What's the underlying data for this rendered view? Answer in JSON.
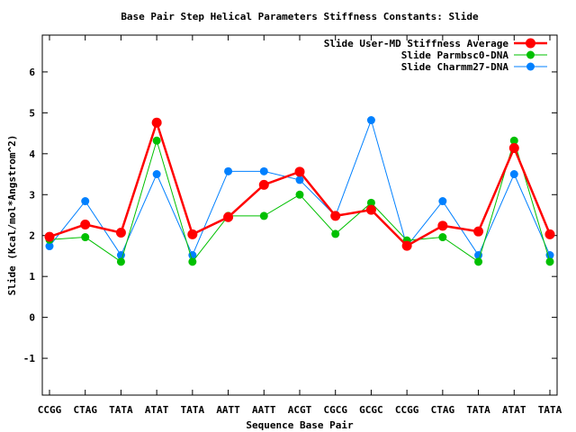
{
  "chart_data": {
    "type": "line",
    "title": "Base Pair Step Helical Parameters Stiffness Constants: Slide",
    "xlabel": "Sequence Base Pair",
    "ylabel": "Slide (Kcal/mol*Angstrom^2)",
    "ylim": [
      -1.9,
      6.9
    ],
    "yticks": [
      -1,
      0,
      1,
      2,
      3,
      4,
      5,
      6
    ],
    "grid": false,
    "legend_position": "top-right",
    "categories": [
      "CCGG",
      "CTAG",
      "TATA",
      "ATAT",
      "TATA",
      "AATT",
      "AATT",
      "ACGT",
      "CGCG",
      "GCGC",
      "CCGG",
      "CTAG",
      "TATA",
      "ATAT",
      "TATA"
    ],
    "series": [
      {
        "name": "Slide User-MD Stiffness Average",
        "color": "#ff0000",
        "values": [
          1.97,
          2.27,
          2.07,
          4.76,
          2.03,
          2.45,
          3.24,
          3.56,
          2.48,
          2.63,
          1.75,
          2.24,
          2.1,
          4.14,
          2.03
        ]
      },
      {
        "name": "Slide Parmbsc0-DNA",
        "color": "#00c000",
        "values": [
          1.9,
          1.96,
          1.36,
          4.32,
          1.36,
          2.48,
          2.48,
          3.0,
          2.04,
          2.8,
          1.88,
          1.96,
          1.36,
          4.32,
          1.36
        ]
      },
      {
        "name": "Slide Charmm27-DNA",
        "color": "#0080ff",
        "values": [
          1.74,
          2.84,
          1.52,
          3.5,
          1.52,
          3.57,
          3.57,
          3.36,
          2.48,
          4.82,
          1.74,
          2.84,
          1.52,
          3.5,
          1.52
        ]
      }
    ]
  }
}
